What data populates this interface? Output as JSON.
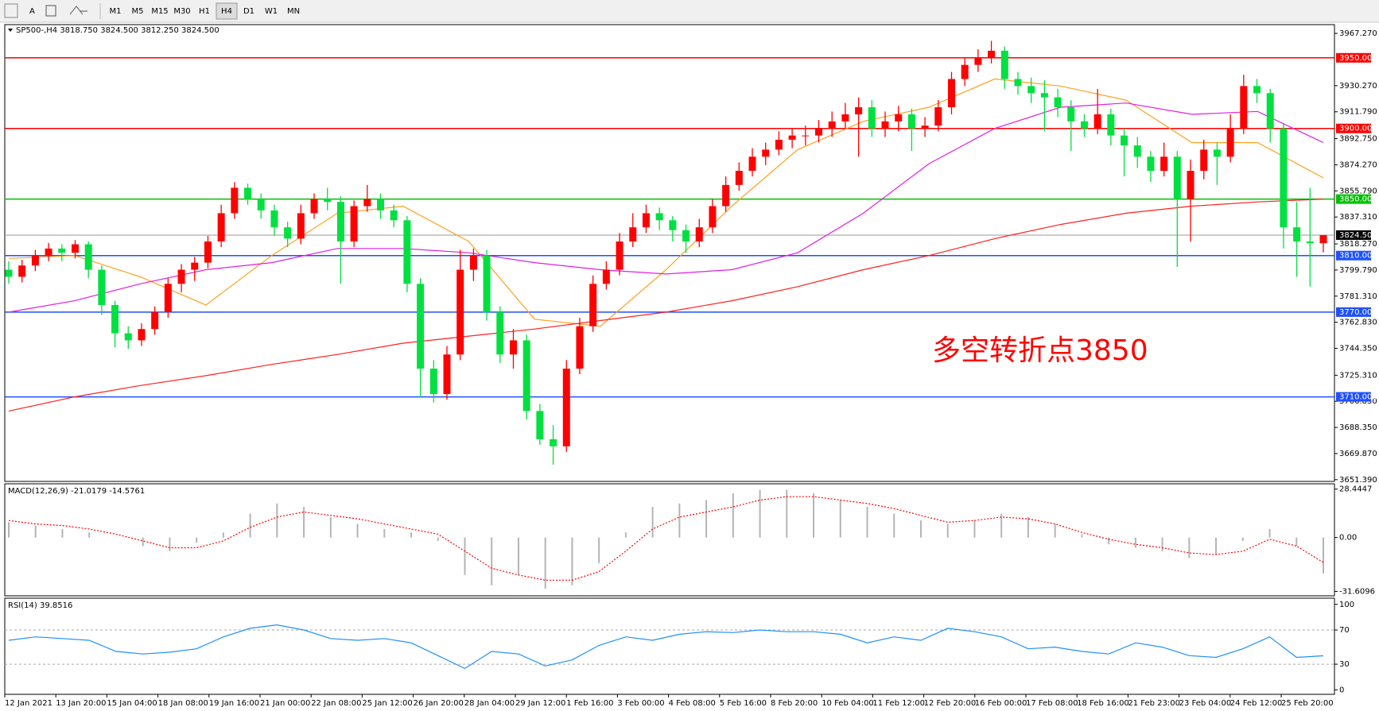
{
  "toolbar": {
    "buttons": [
      "M1",
      "M5",
      "M15",
      "M30",
      "H1",
      "H4",
      "D1",
      "W1",
      "MN"
    ],
    "icons": [
      "A"
    ]
  },
  "chart_data": [
    {
      "type": "candlestick",
      "title": "SP500-,H4 3818.750 3824.500 3812.250 3824.500",
      "annotation": "多空转折点3850",
      "up_color": "#ff0000",
      "down_color": "#00e040",
      "ylim": [
        3650.15,
        3973.49
      ],
      "yticks": [
        {
          "value": 3967.27,
          "label": "3967.270"
        },
        {
          "value": 3930.27,
          "label": "3930.270"
        },
        {
          "value": 3911.79,
          "label": "3911.790"
        },
        {
          "value": 3892.75,
          "label": "3892.750"
        },
        {
          "value": 3874.27,
          "label": "3874.270"
        },
        {
          "value": 3855.79,
          "label": "3855.790"
        },
        {
          "value": 3837.31,
          "label": "3837.310"
        },
        {
          "value": 3818.27,
          "label": "3818.270"
        },
        {
          "value": 3799.79,
          "label": "3799.790"
        },
        {
          "value": 3781.31,
          "label": "3781.310"
        },
        {
          "value": 3762.83,
          "label": "3762.830"
        },
        {
          "value": 3744.35,
          "label": "3744.350"
        },
        {
          "value": 3725.31,
          "label": "3725.310"
        },
        {
          "value": 3706.85,
          "label": "3706.850"
        },
        {
          "value": 3688.35,
          "label": "3688.350"
        },
        {
          "value": 3669.87,
          "label": "3669.870"
        },
        {
          "value": 3651.39,
          "label": "3651.390"
        }
      ],
      "xlabels": [
        "12 Jan 2021",
        "13 Jan 20:00",
        "15 Jan 04:00",
        "18 Jan 08:00",
        "19 Jan 16:00",
        "21 Jan 00:00",
        "22 Jan 08:00",
        "25 Jan 12:00",
        "26 Jan 20:00",
        "28 Jan 04:00",
        "29 Jan 12:00",
        "1 Feb 16:00",
        "3 Feb 00:00",
        "4 Feb 08:00",
        "5 Feb 16:00",
        "8 Feb 20:00",
        "10 Feb 04:00",
        "11 Feb 12:00",
        "12 Feb 20:00",
        "16 Feb 00:00",
        "17 Feb 08:00",
        "18 Feb 16:00",
        "21 Feb 23:00",
        "23 Feb 04:00",
        "24 Feb 12:00",
        "25 Feb 20:00"
      ],
      "levels": [
        {
          "value": 3950,
          "label": "3950.000",
          "color": "#ff0000"
        },
        {
          "value": 3900,
          "label": "3900.000",
          "color": "#ff0000"
        },
        {
          "value": 3850,
          "label": "3850.000",
          "color": "#00c000"
        },
        {
          "value": 3824.5,
          "label": "3824.500",
          "color": "#000000"
        },
        {
          "value": 3810,
          "label": "3810.000",
          "color": "#1e50ff"
        },
        {
          "value": 3770,
          "label": "3770.000",
          "color": "#1e50ff"
        },
        {
          "value": 3710,
          "label": "3710.000",
          "color": "#1e50ff"
        }
      ],
      "candles": [
        [
          3800,
          3806,
          3790,
          3795
        ],
        [
          3795,
          3807,
          3791,
          3803
        ],
        [
          3803,
          3814,
          3799,
          3810
        ],
        [
          3810,
          3819,
          3806,
          3815
        ],
        [
          3815,
          3818,
          3806,
          3812
        ],
        [
          3812,
          3821,
          3808,
          3818
        ],
        [
          3818,
          3820,
          3794,
          3800
        ],
        [
          3800,
          3803,
          3768,
          3775
        ],
        [
          3775,
          3778,
          3745,
          3755
        ],
        [
          3755,
          3760,
          3744,
          3750
        ],
        [
          3750,
          3762,
          3746,
          3758
        ],
        [
          3758,
          3774,
          3754,
          3770
        ],
        [
          3770,
          3794,
          3766,
          3790
        ],
        [
          3790,
          3804,
          3784,
          3800
        ],
        [
          3800,
          3809,
          3792,
          3805
        ],
        [
          3805,
          3824,
          3801,
          3820
        ],
        [
          3820,
          3846,
          3816,
          3840
        ],
        [
          3840,
          3862,
          3836,
          3858
        ],
        [
          3858,
          3861,
          3846,
          3850
        ],
        [
          3850,
          3854,
          3836,
          3842
        ],
        [
          3842,
          3846,
          3824,
          3830
        ],
        [
          3830,
          3834,
          3816,
          3822
        ],
        [
          3822,
          3846,
          3818,
          3840
        ],
        [
          3840,
          3854,
          3836,
          3850
        ],
        [
          3850,
          3858,
          3842,
          3848
        ],
        [
          3848,
          3852,
          3790,
          3820
        ],
        [
          3820,
          3849,
          3816,
          3845
        ],
        [
          3845,
          3860,
          3841,
          3850
        ],
        [
          3850,
          3854,
          3836,
          3842
        ],
        [
          3842,
          3846,
          3830,
          3835
        ],
        [
          3835,
          3838,
          3784,
          3790
        ],
        [
          3790,
          3794,
          3710,
          3730
        ],
        [
          3730,
          3736,
          3706,
          3712
        ],
        [
          3712,
          3746,
          3708,
          3740
        ],
        [
          3740,
          3814,
          3736,
          3800
        ],
        [
          3800,
          3815,
          3792,
          3810
        ],
        [
          3810,
          3814,
          3764,
          3770
        ],
        [
          3770,
          3774,
          3734,
          3740
        ],
        [
          3740,
          3758,
          3730,
          3750
        ],
        [
          3750,
          3754,
          3694,
          3700
        ],
        [
          3700,
          3705,
          3676,
          3680
        ],
        [
          3680,
          3690,
          3662,
          3675
        ],
        [
          3675,
          3736,
          3671,
          3730
        ],
        [
          3730,
          3766,
          3726,
          3760
        ],
        [
          3760,
          3796,
          3756,
          3790
        ],
        [
          3790,
          3806,
          3786,
          3800
        ],
        [
          3800,
          3826,
          3796,
          3820
        ],
        [
          3820,
          3840,
          3816,
          3830
        ],
        [
          3830,
          3846,
          3826,
          3840
        ],
        [
          3840,
          3844,
          3828,
          3835
        ],
        [
          3835,
          3838,
          3820,
          3828
        ],
        [
          3828,
          3832,
          3812,
          3820
        ],
        [
          3820,
          3836,
          3816,
          3830
        ],
        [
          3830,
          3850,
          3826,
          3845
        ],
        [
          3845,
          3866,
          3841,
          3860
        ],
        [
          3860,
          3876,
          3856,
          3870
        ],
        [
          3870,
          3886,
          3866,
          3880
        ],
        [
          3880,
          3890,
          3874,
          3885
        ],
        [
          3885,
          3898,
          3881,
          3892
        ],
        [
          3892,
          3900,
          3886,
          3895
        ],
        [
          3895,
          3902,
          3888,
          3895
        ],
        [
          3895,
          3906,
          3890,
          3900
        ],
        [
          3900,
          3912,
          3894,
          3905
        ],
        [
          3905,
          3918,
          3900,
          3910
        ],
        [
          3910,
          3922,
          3880,
          3915
        ],
        [
          3915,
          3920,
          3894,
          3900
        ],
        [
          3900,
          3912,
          3894,
          3905
        ],
        [
          3905,
          3916,
          3898,
          3910
        ],
        [
          3910,
          3914,
          3884,
          3900
        ],
        [
          3900,
          3908,
          3894,
          3902
        ],
        [
          3902,
          3920,
          3898,
          3915
        ],
        [
          3915,
          3940,
          3910,
          3935
        ],
        [
          3935,
          3950,
          3930,
          3945
        ],
        [
          3945,
          3956,
          3940,
          3950
        ],
        [
          3950,
          3962,
          3946,
          3955
        ],
        [
          3955,
          3958,
          3928,
          3935
        ],
        [
          3935,
          3940,
          3924,
          3930
        ],
        [
          3930,
          3936,
          3918,
          3925
        ],
        [
          3925,
          3934,
          3898,
          3922
        ],
        [
          3922,
          3928,
          3908,
          3915
        ],
        [
          3915,
          3920,
          3884,
          3905
        ],
        [
          3905,
          3910,
          3894,
          3900
        ],
        [
          3900,
          3928,
          3896,
          3910
        ],
        [
          3910,
          3914,
          3888,
          3895
        ],
        [
          3895,
          3900,
          3866,
          3888
        ],
        [
          3888,
          3894,
          3872,
          3880
        ],
        [
          3880,
          3884,
          3862,
          3870
        ],
        [
          3870,
          3890,
          3866,
          3880
        ],
        [
          3880,
          3884,
          3802,
          3850
        ],
        [
          3850,
          3878,
          3820,
          3870
        ],
        [
          3870,
          3892,
          3864,
          3885
        ],
        [
          3885,
          3890,
          3860,
          3880
        ],
        [
          3880,
          3910,
          3876,
          3900
        ],
        [
          3900,
          3938,
          3896,
          3930
        ],
        [
          3930,
          3935,
          3918,
          3925
        ],
        [
          3925,
          3928,
          3890,
          3900
        ],
        [
          3900,
          3904,
          3815,
          3830
        ],
        [
          3830,
          3848,
          3795,
          3820
        ],
        [
          3820,
          3858,
          3788,
          3818.75
        ],
        [
          3818.75,
          3824.5,
          3812.25,
          3824.5
        ]
      ],
      "series": [
        {
          "color": "#ffa020",
          "values": [
            3808,
            3810,
            3795,
            3775,
            3810,
            3840,
            3845,
            3820,
            3765,
            3760,
            3800,
            3845,
            3885,
            3905,
            3915,
            3935,
            3930,
            3920,
            3890,
            3890,
            3865
          ]
        },
        {
          "color": "#e020e0",
          "values": [
            3770,
            3778,
            3790,
            3800,
            3805,
            3815,
            3815,
            3812,
            3805,
            3800,
            3797,
            3800,
            3812,
            3840,
            3875,
            3900,
            3915,
            3918,
            3910,
            3912,
            3890
          ]
        },
        {
          "color": "#ff2020",
          "values": [
            3700,
            3710,
            3718,
            3725,
            3733,
            3740,
            3748,
            3753,
            3758,
            3764,
            3770,
            3778,
            3788,
            3800,
            3810,
            3822,
            3832,
            3840,
            3845,
            3848,
            3850
          ]
        }
      ]
    },
    {
      "type": "macd",
      "title": "MACD(12,26,9) -21.0179 -14.5761",
      "ylim": [
        -34.2,
        31.55
      ],
      "yticks": [
        28.4447,
        {
          "value": 0,
          "label": "0.00"
        },
        -31.6096
      ],
      "series": [
        {
          "color": "#b4b4b4",
          "values": [
            9,
            7,
            5,
            3,
            0,
            -5,
            -8,
            -3,
            3,
            14,
            20,
            18,
            12,
            8,
            5,
            3,
            -2,
            -22,
            -28,
            -22,
            -30,
            -28,
            -15,
            3,
            18,
            20,
            22,
            26,
            28,
            28,
            26,
            22,
            18,
            14,
            10,
            8,
            10,
            14,
            12,
            8,
            2,
            -4,
            -6,
            -8,
            -12,
            -10,
            -2,
            5,
            -5,
            -21.0179
          ]
        },
        {
          "color": "#ff0000",
          "values": [
            10,
            8,
            7,
            5,
            2,
            -2,
            -6,
            -6,
            -2,
            6,
            12,
            15,
            13,
            11,
            8,
            5,
            2,
            -8,
            -18,
            -22,
            -25,
            -25,
            -20,
            -8,
            5,
            12,
            15,
            18,
            22,
            24,
            24,
            22,
            20,
            17,
            13,
            9,
            10,
            12,
            11,
            8,
            3,
            -1,
            -4,
            -6,
            -9,
            -10,
            -8,
            -1,
            -5,
            -14.5761
          ]
        }
      ]
    },
    {
      "type": "rsi",
      "title": "RSI(14) 39.8516",
      "ylim": [
        -5.2,
        107.2
      ],
      "yticks": [
        100,
        70,
        30,
        0
      ],
      "series": [
        {
          "color": "#1e90ff",
          "values": [
            58,
            62,
            60,
            58,
            45,
            42,
            44,
            48,
            62,
            72,
            76,
            70,
            60,
            58,
            60,
            55,
            40,
            25,
            45,
            42,
            28,
            35,
            52,
            62,
            58,
            65,
            68,
            67,
            70,
            68,
            68,
            65,
            55,
            62,
            58,
            72,
            68,
            62,
            48,
            50,
            45,
            42,
            55,
            50,
            40,
            38,
            48,
            62,
            38,
            39.8516
          ]
        }
      ]
    }
  ]
}
